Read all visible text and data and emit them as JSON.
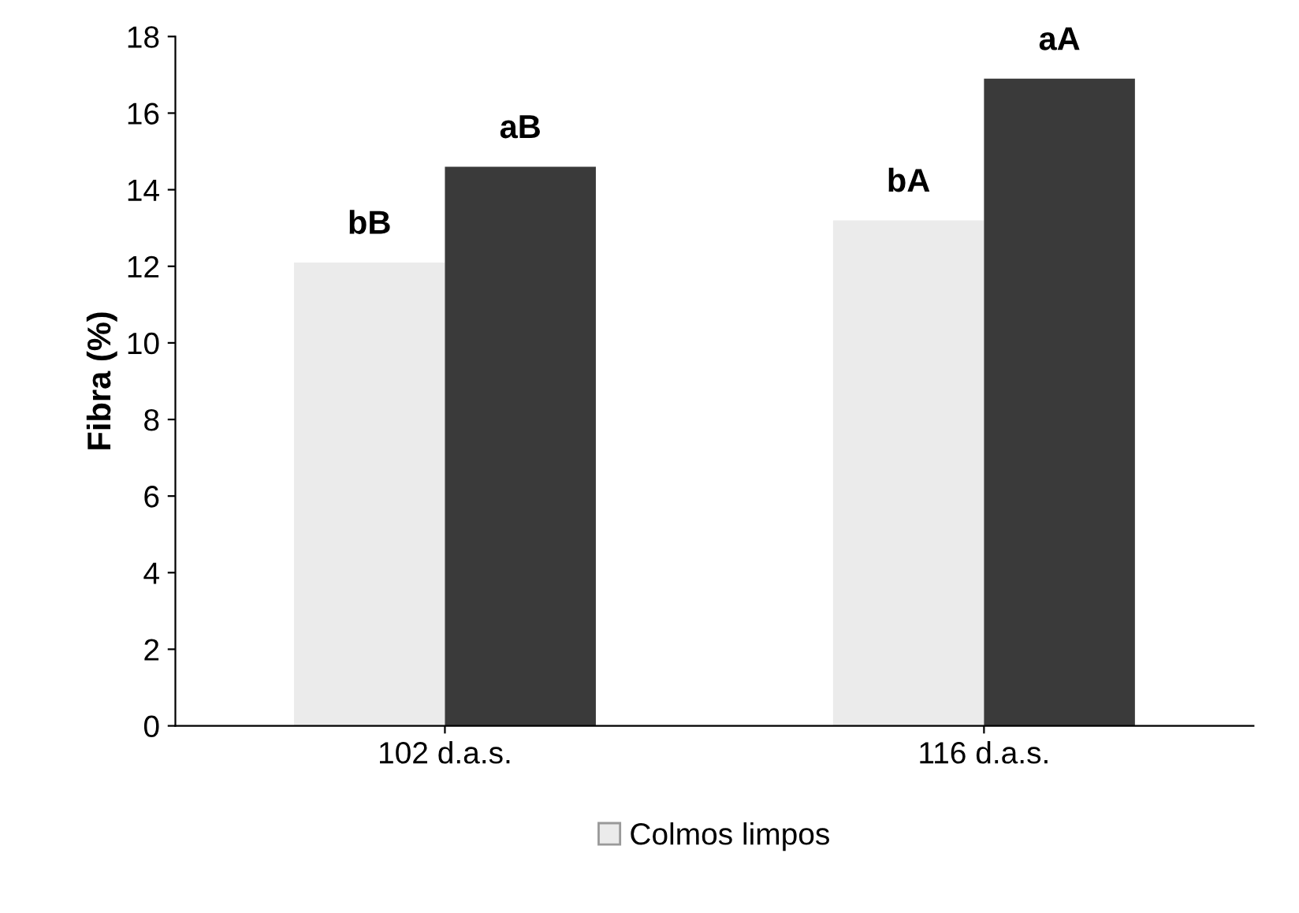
{
  "chart_data": {
    "type": "bar",
    "ylabel": "Fibra (%)",
    "categories": [
      "102 d.a.s.",
      "116 d.a.s."
    ],
    "series": [
      {
        "name": "Colmos limpos",
        "color": "#ebebeb",
        "values": [
          12.1,
          13.2
        ]
      },
      {
        "color": "#3a3a3a",
        "values": [
          14.6,
          16.9
        ]
      }
    ],
    "ylim": [
      0,
      18
    ],
    "yticks": [
      0,
      2,
      4,
      6,
      8,
      10,
      12,
      14,
      16,
      18
    ],
    "grid": false,
    "legend": "bottom",
    "annotations": [
      {
        "text": "bB",
        "x": "102 d.a.s.",
        "y": 12.1
      },
      {
        "text": "aB",
        "x": "102 d.a.s.",
        "y": 14.6
      },
      {
        "text": "bA",
        "x": "116 d.a.s.",
        "y": 13.2
      },
      {
        "text": "aA",
        "x": "116 d.a.s.",
        "y": 16.9
      }
    ]
  }
}
